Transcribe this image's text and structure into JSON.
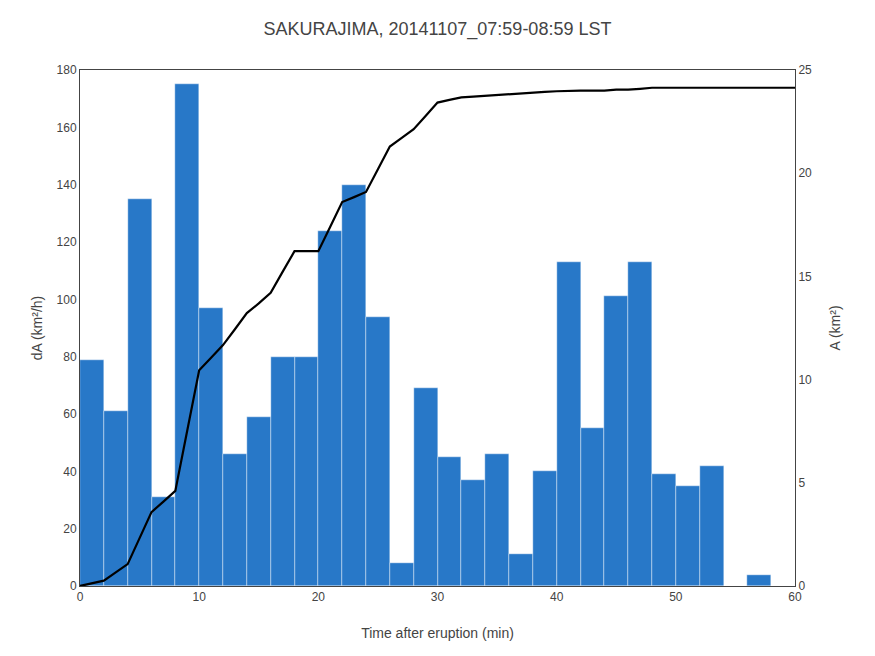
{
  "chart_data": {
    "type": "bar",
    "title": "SAKURAJIMA, 20141107_07:59-08:59 LST",
    "xlabel": "Time after eruption (min)",
    "ylabel": "dA (km²/h)",
    "y2label": "A (km²)",
    "series": [
      {
        "type": "bar",
        "color": "#2878C8",
        "x": [
          1,
          3,
          5,
          7,
          9,
          11,
          13,
          15,
          17,
          19,
          21,
          23,
          25,
          27,
          29,
          31,
          33,
          35,
          37,
          39,
          41,
          43,
          45,
          47,
          49,
          51,
          53,
          55,
          57,
          59
        ],
        "values": [
          79,
          61,
          135,
          31,
          175,
          97,
          46,
          59,
          80,
          80,
          124,
          140,
          94,
          8,
          69,
          45,
          37,
          46,
          11,
          40,
          113,
          55,
          101,
          113,
          39,
          35,
          42,
          0,
          4,
          0
        ]
      },
      {
        "type": "line",
        "color": "#000000",
        "axis": "y2",
        "x": [
          0,
          1,
          2,
          3,
          4,
          5,
          6,
          7,
          8,
          9,
          10,
          11,
          12,
          13,
          14,
          15,
          16,
          17,
          18,
          19,
          20,
          21,
          22,
          23,
          24,
          25,
          26,
          27,
          28,
          29,
          30,
          31,
          32,
          33,
          34,
          35,
          36,
          37,
          38,
          39,
          40,
          41,
          42,
          43,
          44,
          45,
          46,
          47,
          48,
          49,
          50,
          51,
          52,
          53,
          54,
          55,
          56,
          57,
          58,
          59,
          60
        ],
        "values": [
          0,
          0.13,
          0.26,
          0.66,
          1.06,
          2.32,
          3.58,
          4.09,
          4.61,
          7.53,
          10.45,
          11.06,
          11.67,
          12.44,
          13.22,
          13.69,
          14.21,
          15.22,
          16.22,
          16.22,
          16.22,
          17.41,
          18.6,
          18.84,
          19.09,
          20.19,
          21.29,
          21.71,
          22.13,
          22.77,
          23.42,
          23.55,
          23.67,
          23.71,
          23.75,
          23.8,
          23.85,
          23.88,
          23.91,
          23.94,
          23.97,
          24.0,
          24.0,
          24.0,
          24.0,
          24.05,
          24.05,
          24.09,
          24.14,
          24.14,
          24.14,
          24.14,
          24.14,
          24.14,
          24.14,
          24.14,
          24.14,
          24.14,
          24.14,
          24.14,
          24.14
        ]
      }
    ],
    "xlim": [
      0,
      60
    ],
    "xticks": [
      0,
      10,
      20,
      30,
      40,
      50,
      60
    ],
    "ylim": [
      0,
      180
    ],
    "yticks": [
      0,
      20,
      40,
      60,
      80,
      100,
      120,
      140,
      160,
      180
    ],
    "y2lim": [
      0,
      25
    ],
    "y2ticks": [
      0,
      5,
      10,
      15,
      20,
      25
    ],
    "grid": false
  }
}
